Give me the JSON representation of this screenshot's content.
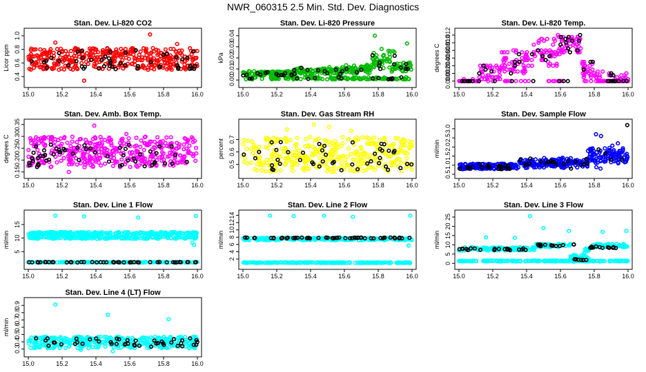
{
  "figure_title": "NWR_060315  2.5 Min. Std. Dev. Diagnostics",
  "colors": {
    "frame": "#000000",
    "marker_overlay": "#000000"
  },
  "chart_data": [
    {
      "id": "co2",
      "type": "scatter",
      "title": "Stan. Dev. Li-820 CO2",
      "ylabel": "Licor ppm",
      "xlabel": "",
      "color": "#ff0000",
      "xlim": [
        15.0,
        16.0
      ],
      "ylim": [
        0.3,
        1.05
      ],
      "xticks": [
        "15.0",
        "15.2",
        "15.4",
        "15.6",
        "15.8",
        "16.0"
      ],
      "yticks": [
        "0.4",
        "0.6",
        "0.8",
        "1.0"
      ],
      "series": [
        {
          "name": "main",
          "color": "#ff0000",
          "pattern": "band",
          "lo": 0.5,
          "hi": 0.82,
          "n": 380,
          "outliers": [
            [
              15.33,
              0.34
            ],
            [
              15.16,
              0.9
            ],
            [
              15.72,
              1.02
            ],
            [
              15.88,
              0.88
            ]
          ]
        },
        {
          "name": "overlay",
          "color": "#000000",
          "pattern": "band",
          "lo": 0.5,
          "hi": 0.8,
          "n": 50
        }
      ]
    },
    {
      "id": "pressure",
      "type": "scatter",
      "title": "Stan. Dev. Li-820 Pressure",
      "ylabel": "kPa",
      "xlabel": "",
      "color": "#00bb00",
      "xlim": [
        15.0,
        16.0
      ],
      "ylim": [
        -0.003,
        0.043
      ],
      "xticks": [
        "15.0",
        "15.2",
        "15.4",
        "15.6",
        "15.8",
        "16.0"
      ],
      "yticks": [
        "0.00",
        "0.01",
        "0.02",
        "0.03",
        "0.04"
      ],
      "series": [
        {
          "name": "main",
          "color": "#00bb00",
          "pattern": "pressure",
          "n": 420,
          "outliers": [
            [
              15.78,
              0.04
            ],
            [
              15.97,
              0.033
            ],
            [
              15.87,
              0.026
            ],
            [
              15.82,
              0.028
            ]
          ]
        },
        {
          "name": "overlay",
          "color": "#000000",
          "pattern": "pressure",
          "n": 50
        }
      ]
    },
    {
      "id": "temp",
      "type": "scatter",
      "title": "Stan. Dev. Li-820 Temp.",
      "ylabel": "degrees C",
      "xlabel": "",
      "color": "#ff00ff",
      "xlim": [
        15.0,
        16.0
      ],
      "ylim": [
        -0.0006,
        0.0127
      ],
      "xticks": [
        "15.0",
        "15.2",
        "15.4",
        "15.6",
        "15.8",
        "16.0"
      ],
      "yticks": [
        "0.000",
        "0.002",
        "0.004",
        "0.006",
        "0.008",
        "0.010",
        "0.012"
      ],
      "series": [
        {
          "name": "main",
          "color": "#ff00ff",
          "pattern": "temp",
          "n": 330,
          "outliers": []
        },
        {
          "name": "overlay",
          "color": "#000000",
          "pattern": "temp",
          "n": 55
        }
      ]
    },
    {
      "id": "boxtemp",
      "type": "scatter",
      "title": "Stan. Dev. Amb. Box Temp.",
      "ylabel": "degrees C",
      "xlabel": "",
      "color": "#ff00ff",
      "xlim": [
        15.0,
        16.0
      ],
      "ylim": [
        0.14,
        0.355
      ],
      "xticks": [
        "15.0",
        "15.2",
        "15.4",
        "15.6",
        "15.8",
        "16.0"
      ],
      "yticks": [
        "0.15",
        "0.20",
        "0.25",
        "0.30",
        "0.35"
      ],
      "series": [
        {
          "name": "main",
          "color": "#ff00ff",
          "pattern": "band",
          "lo": 0.17,
          "hi": 0.3,
          "n": 400,
          "outliers": [
            [
              15.39,
              0.345
            ],
            [
              15.24,
              0.15
            ],
            [
              15.58,
              0.31
            ]
          ]
        },
        {
          "name": "overlay",
          "color": "#000000",
          "pattern": "band",
          "lo": 0.17,
          "hi": 0.27,
          "n": 55
        }
      ]
    },
    {
      "id": "rh",
      "type": "scatter",
      "title": "Stan. Dev. Gas Stream RH",
      "ylabel": "percent",
      "xlabel": "",
      "color": "#ffff00",
      "xlim": [
        15.0,
        16.0
      ],
      "ylim": [
        0.42,
        0.83
      ],
      "xticks": [
        "15.0",
        "15.2",
        "15.4",
        "15.6",
        "15.8",
        "16.0"
      ],
      "yticks": [
        "0.5",
        "0.6",
        "0.7"
      ],
      "series": [
        {
          "name": "main",
          "color": "#ffff00",
          "pattern": "band",
          "lo": 0.44,
          "hi": 0.72,
          "n": 360,
          "outliers": [
            [
              15.42,
              0.82
            ],
            [
              15.26,
              0.78
            ],
            [
              15.51,
              0.8
            ],
            [
              15.64,
              0.77
            ]
          ]
        },
        {
          "name": "overlay",
          "color": "#000000",
          "pattern": "band",
          "lo": 0.45,
          "hi": 0.68,
          "n": 45
        }
      ]
    },
    {
      "id": "sampleflow",
      "type": "scatter",
      "title": "Stan. Dev. Sample Flow",
      "ylabel": "ml/min",
      "xlabel": "",
      "color": "#0000ff",
      "xlim": [
        15.0,
        16.0
      ],
      "ylim": [
        0.5,
        3.3
      ],
      "xticks": [
        "15.0",
        "15.2",
        "15.4",
        "15.6",
        "15.8",
        "16.0"
      ],
      "yticks": [
        "0.5",
        "1.0",
        "1.5",
        "2.0",
        "2.5",
        "3.0"
      ],
      "series": [
        {
          "name": "main",
          "color": "#0000ff",
          "pattern": "sample",
          "n": 420,
          "outliers": [
            [
              15.81,
              2.7
            ],
            [
              15.84,
              2.6
            ],
            [
              15.94,
              2.2
            ],
            [
              15.79,
              1.9
            ]
          ]
        },
        {
          "name": "overlay",
          "color": "#000000",
          "pattern": "sample",
          "n": 45,
          "outliers": [
            [
              15.995,
              3.2
            ]
          ]
        }
      ]
    },
    {
      "id": "line1",
      "type": "scatter",
      "title": "Stan. Dev. Line 1 Flow",
      "ylabel": "ml/min",
      "xlabel": "",
      "color": "#00ffff",
      "xlim": [
        15.0,
        16.0
      ],
      "ylim": [
        0.0,
        18.8
      ],
      "xticks": [
        "15.0",
        "15.2",
        "15.4",
        "15.6",
        "15.8",
        "16.0"
      ],
      "yticks": [
        "5",
        "10",
        "15"
      ],
      "series": [
        {
          "name": "upper-band",
          "color": "#00ffff",
          "pattern": "level",
          "level": 11.8,
          "spread": 0.45,
          "n": 220,
          "outliers": [
            [
              15.16,
              18.3
            ],
            [
              15.33,
              18.0
            ],
            [
              15.65,
              17.6
            ],
            [
              15.99,
              18.2
            ],
            [
              15.98,
              7.5
            ],
            [
              15.97,
              8.3
            ]
          ]
        },
        {
          "name": "lower-band",
          "color": "#00ffff",
          "pattern": "level",
          "level": 10.2,
          "spread": 0.45,
          "n": 200
        },
        {
          "name": "base",
          "color": "#00ffff",
          "pattern": "level",
          "level": 1.1,
          "spread": 0.1,
          "n": 160
        },
        {
          "name": "overlay",
          "color": "#000000",
          "pattern": "level",
          "level": 1.1,
          "spread": 0.08,
          "n": 50
        }
      ]
    },
    {
      "id": "line2",
      "type": "scatter",
      "title": "Stan. Dev. Line 2 Flow",
      "ylabel": "ml/min",
      "xlabel": "",
      "color": "#00ffff",
      "xlim": [
        15.0,
        16.0
      ],
      "ylim": [
        0.3,
        14.3
      ],
      "xticks": [
        "15.0",
        "15.2",
        "15.4",
        "15.6",
        "15.8",
        "16.0"
      ],
      "yticks": [
        "2",
        "4",
        "6",
        "8",
        "10",
        "12",
        "14"
      ],
      "series": [
        {
          "name": "upper",
          "color": "#00ffff",
          "pattern": "level",
          "level": 7.5,
          "spread": 0.35,
          "n": 220,
          "outliers": [
            [
              15.16,
              13.9
            ],
            [
              15.3,
              13.8
            ],
            [
              15.48,
              13.9
            ],
            [
              15.65,
              13.6
            ],
            [
              15.99,
              13.9
            ],
            [
              15.98,
              5.7
            ]
          ]
        },
        {
          "name": "base",
          "color": "#00ffff",
          "pattern": "level",
          "level": 1.0,
          "spread": 0.1,
          "n": 200
        },
        {
          "name": "overlay",
          "color": "#000000",
          "pattern": "level",
          "level": 7.8,
          "spread": 0.12,
          "n": 55
        }
      ]
    },
    {
      "id": "line3",
      "type": "scatter",
      "title": "Stan. Dev. Line 3 Flow",
      "ylabel": "ml/min",
      "xlabel": "",
      "color": "#00ffff",
      "xlim": [
        15.0,
        16.0
      ],
      "ylim": [
        -1.0,
        26.5
      ],
      "xticks": [
        "15.0",
        "15.2",
        "15.4",
        "15.6",
        "15.8",
        "16.0"
      ],
      "yticks": [
        "0",
        "5",
        "10",
        "15",
        "20",
        "25"
      ],
      "series": [
        {
          "name": "upper",
          "color": "#00ffff",
          "pattern": "line3upper",
          "n": 260,
          "outliers": [
            [
              15.16,
              14.0
            ],
            [
              15.42,
              25.5
            ],
            [
              15.5,
              19.0
            ],
            [
              15.65,
              17.5
            ],
            [
              15.85,
              17.0
            ],
            [
              15.99,
              17.5
            ],
            [
              15.33,
              13.8
            ]
          ]
        },
        {
          "name": "base",
          "color": "#00ffff",
          "pattern": "level",
          "level": 1.3,
          "spread": 0.25,
          "n": 200
        },
        {
          "name": "dip",
          "color": "#00ffff",
          "pattern": "dip",
          "n": 30
        },
        {
          "name": "overlay",
          "color": "#000000",
          "pattern": "line3overlay",
          "n": 55
        }
      ]
    },
    {
      "id": "line4",
      "type": "scatter",
      "title": "Stan. Dev. Line 4 (LT) Flow",
      "ylabel": "ml/min",
      "xlabel": "",
      "color": "#00ffff",
      "xlim": [
        15.0,
        16.0
      ],
      "ylim": [
        0.25,
        0.95
      ],
      "xticks": [
        "15.0",
        "15.2",
        "15.4",
        "15.6",
        "15.8",
        "16.0"
      ],
      "yticks": [
        "0.3",
        "0.4",
        "0.5",
        "0.6",
        "0.7",
        "0.8",
        "0.9"
      ],
      "series": [
        {
          "name": "main",
          "color": "#00ffff",
          "pattern": "band",
          "lo": 0.31,
          "hi": 0.47,
          "n": 360,
          "outliers": [
            [
              15.16,
              0.91
            ],
            [
              15.47,
              0.77
            ],
            [
              15.83,
              0.71
            ],
            [
              15.5,
              0.27
            ],
            [
              15.31,
              0.29
            ]
          ]
        },
        {
          "name": "overlay",
          "color": "#000000",
          "pattern": "band",
          "lo": 0.33,
          "hi": 0.45,
          "n": 45
        }
      ]
    }
  ]
}
